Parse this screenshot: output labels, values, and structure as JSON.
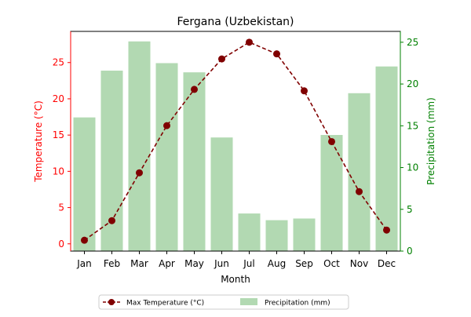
{
  "chart_data": {
    "type": "bar+line",
    "title": "Fergana (Uzbekistan)",
    "xlabel": "Month",
    "ylabel_left": "Temperature (°C)",
    "ylabel_right": "Precipitation (mm)",
    "categories": [
      "Jan",
      "Feb",
      "Mar",
      "Apr",
      "May",
      "Jun",
      "Jul",
      "Aug",
      "Sep",
      "Oct",
      "Nov",
      "Dec"
    ],
    "y_left": {
      "min": -1,
      "max": 29.3,
      "ticks": [
        0,
        5,
        10,
        15,
        20,
        25
      ]
    },
    "y_right": {
      "min": 0,
      "max": 26.3,
      "ticks": [
        0,
        5,
        10,
        15,
        20,
        25
      ]
    },
    "series": [
      {
        "name": "Max Temperature (°C)",
        "kind": "line",
        "axis": "left",
        "values": [
          0.5,
          3.2,
          9.8,
          16.3,
          21.3,
          25.5,
          27.8,
          26.2,
          21.1,
          14.1,
          7.2,
          1.9
        ],
        "color": "#800000",
        "style": "dashed",
        "marker": "circle"
      },
      {
        "name": "Precipitation (mm)",
        "kind": "bar",
        "axis": "right",
        "values": [
          16.0,
          21.6,
          25.1,
          22.5,
          21.4,
          13.6,
          4.5,
          3.7,
          3.9,
          13.9,
          18.9,
          22.1
        ],
        "color": "#b2d9b2"
      }
    ],
    "axis_colors": {
      "left": "#ff0000",
      "right": "#008000"
    },
    "grid": false,
    "legend_placement": "bottom-center"
  }
}
